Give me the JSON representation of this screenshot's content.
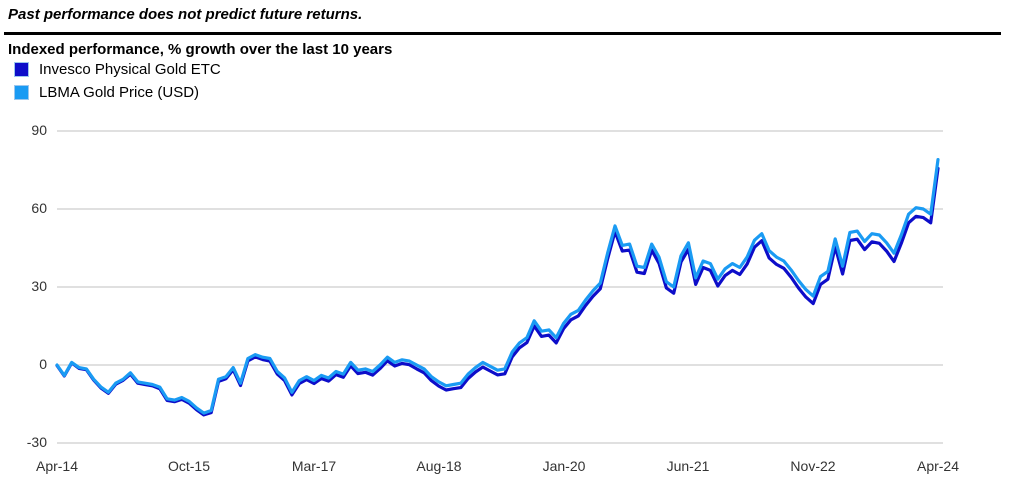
{
  "disclaimer": "Past performance does not predict future returns.",
  "chart_title": "Indexed performance, % growth over the last 10 years",
  "colors": {
    "invesco_line": "#0d0dc9",
    "lbma_line": "#1a9bf3",
    "gridline": "#d6d6d6",
    "divider": "#000000",
    "axis_text": "#333333"
  },
  "legend": [
    {
      "label": "Invesco Physical Gold ETC",
      "color": "#0d0dc9"
    },
    {
      "label": "LBMA Gold Price (USD)",
      "color": "#1a9bf3"
    }
  ],
  "chart_data": {
    "type": "line",
    "title": "Indexed performance, % growth over the last 10 years",
    "x_frequency": "monthly",
    "x_start": "Apr-2014",
    "x_end": "Apr-2024",
    "x_tick_labels": [
      "Apr-14",
      "Oct-15",
      "Mar-17",
      "Aug-18",
      "Jan-20",
      "Jun-21",
      "Nov-22",
      "Apr-24"
    ],
    "x_tick_month_indices": [
      0,
      18,
      35,
      52,
      69,
      86,
      103,
      120
    ],
    "y_ticks": [
      90,
      60,
      30,
      0,
      -30
    ],
    "ylim": [
      -30,
      90
    ],
    "grid": "horizontal",
    "legend_position": "top-left",
    "series": [
      {
        "name": "Invesco Physical Gold ETC",
        "color": "#0d0dc9",
        "values": [
          -0.2,
          -4.2,
          0.8,
          -1.3,
          -1.8,
          -5.8,
          -8.9,
          -10.9,
          -7.4,
          -5.9,
          -3.5,
          -7.0,
          -7.5,
          -8.0,
          -9.1,
          -13.6,
          -14.1,
          -13.2,
          -14.7,
          -17.2,
          -19.2,
          -18.3,
          -6.3,
          -5.3,
          -1.8,
          -7.9,
          1.6,
          3.1,
          2.1,
          1.5,
          -3.5,
          -6.0,
          -11.5,
          -7.1,
          -5.6,
          -7.1,
          -5.2,
          -6.2,
          -3.7,
          -4.7,
          -0.3,
          -3.3,
          -2.8,
          -3.9,
          -1.4,
          1.6,
          -0.4,
          0.6,
          0.1,
          -1.5,
          -3.0,
          -6.0,
          -8.1,
          -9.6,
          -9.1,
          -8.7,
          -5.2,
          -2.7,
          -0.8,
          -2.3,
          -3.8,
          -3.4,
          3.1,
          6.6,
          8.6,
          15.0,
          11.0,
          11.5,
          8.5,
          14.0,
          17.4,
          18.9,
          22.9,
          26.4,
          29.3,
          40.8,
          51.3,
          43.8,
          44.2,
          35.7,
          35.2,
          44.2,
          39.1,
          29.6,
          27.6,
          39.6,
          44.5,
          31.0,
          37.5,
          36.4,
          30.4,
          34.4,
          36.4,
          34.8,
          38.8,
          45.3,
          47.8,
          41.2,
          38.7,
          37.2,
          33.7,
          29.6,
          26.1,
          23.6,
          31.0,
          33.0,
          45.5,
          35.0,
          47.9,
          48.4,
          44.4,
          47.4,
          46.8,
          43.8,
          39.8,
          46.8,
          54.7,
          57.2,
          56.7,
          54.7,
          75.6
        ]
      },
      {
        "name": "LBMA Gold Price (USD)",
        "color": "#1a9bf3",
        "values": [
          0,
          -4,
          1,
          -1,
          -1.5,
          -5.5,
          -8.5,
          -10.5,
          -7,
          -5.5,
          -3,
          -6.5,
          -7,
          -7.5,
          -8.5,
          -13,
          -13.5,
          -12.5,
          -14,
          -16.5,
          -18.5,
          -17.5,
          -5.5,
          -4.5,
          -1,
          -7,
          2.5,
          4,
          3,
          2.5,
          -2.5,
          -5,
          -10.5,
          -6,
          -4.5,
          -6,
          -4,
          -5,
          -2.5,
          -3.5,
          1,
          -2,
          -1.5,
          -2.5,
          0,
          3,
          1,
          2,
          1.5,
          0,
          -1.5,
          -4.5,
          -6.5,
          -8,
          -7.5,
          -7,
          -3.5,
          -1,
          1,
          -0.5,
          -2,
          -1.5,
          5,
          8.5,
          10.5,
          17,
          13,
          13.5,
          10.5,
          16,
          19.5,
          21,
          25,
          28.5,
          31.5,
          43,
          53.5,
          46,
          46.5,
          38,
          37.5,
          46.5,
          41.5,
          32,
          30,
          42,
          47,
          33.5,
          40,
          39,
          33,
          37,
          39,
          37.5,
          41.5,
          48,
          50.5,
          44,
          41.5,
          40,
          36.5,
          32.5,
          29,
          26.5,
          34,
          36,
          48.5,
          38,
          51,
          51.5,
          47.5,
          50.5,
          50,
          47,
          43,
          50,
          58,
          60.5,
          60,
          58,
          79
        ]
      }
    ]
  }
}
